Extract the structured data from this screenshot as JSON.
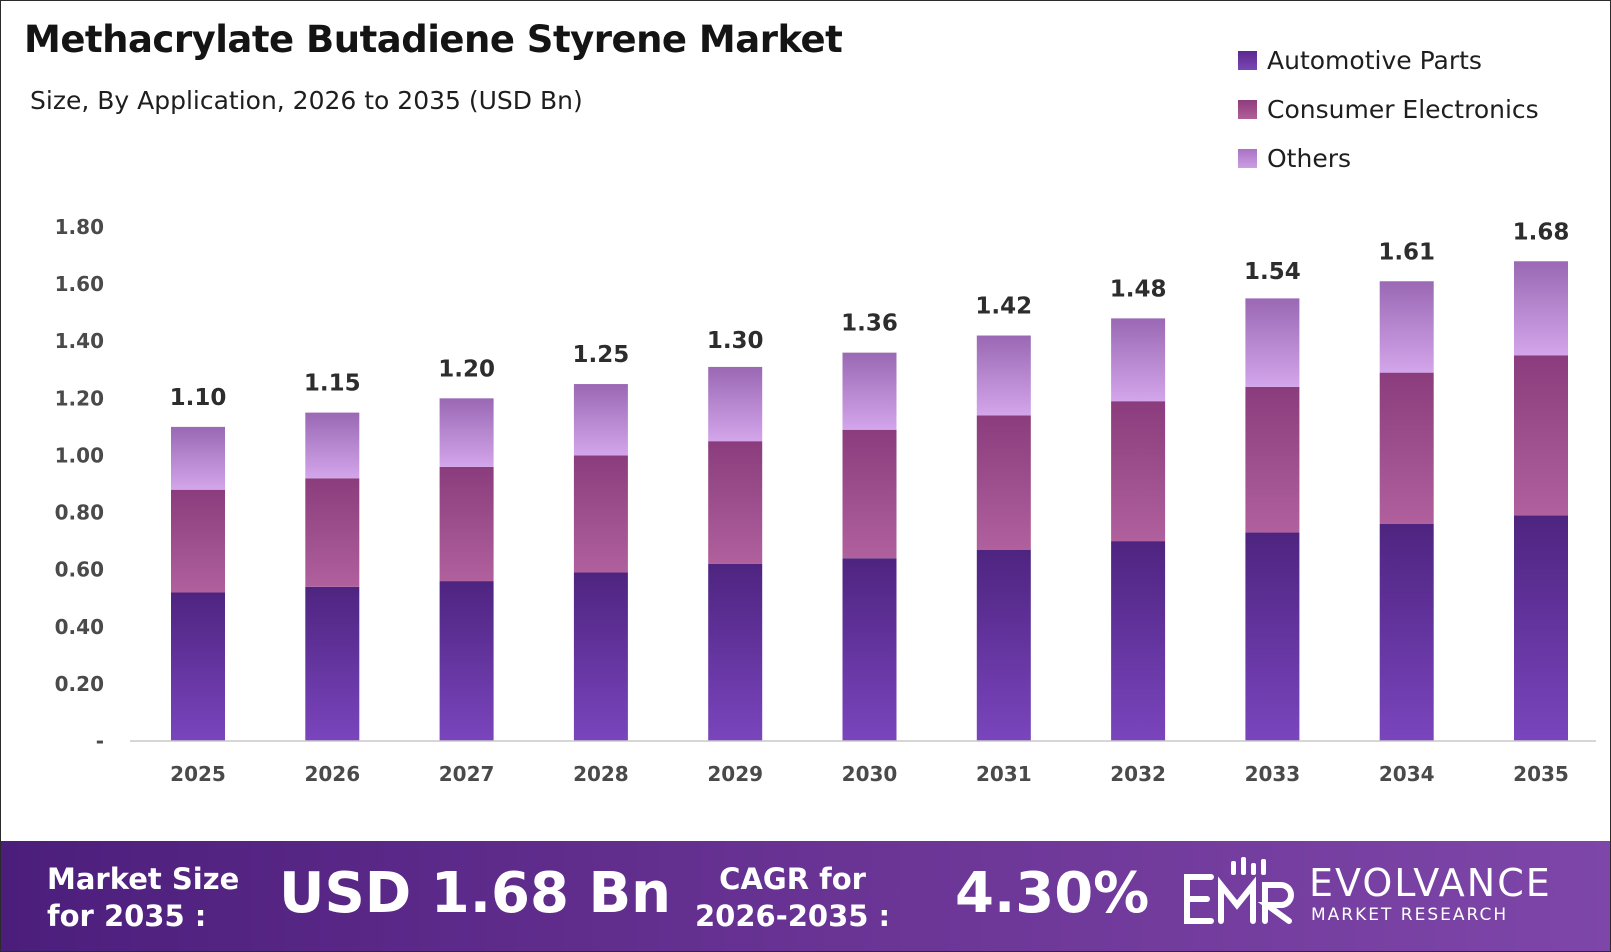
{
  "title": "Methacrylate Butadiene Styrene Market",
  "subtitle": "Size, By Application, 2026 to 2035 (USD Bn)",
  "colors": {
    "automotive": "#6a3aa0",
    "consumer": "#a9508f",
    "others": "#c18fd8",
    "footer": "#5b2a88"
  },
  "legend": [
    {
      "label": "Automotive Parts",
      "color": "#6a3aa0"
    },
    {
      "label": "Consumer Electronics",
      "color": "#a9508f"
    },
    {
      "label": "Others",
      "color": "#c18fd8"
    }
  ],
  "chart_data": {
    "type": "bar",
    "stacked": true,
    "title": "Methacrylate Butadiene Styrene Market",
    "subtitle": "Size, By Application, 2026 to 2035 (USD Bn)",
    "categories": [
      "2025",
      "2026",
      "2027",
      "2028",
      "2029",
      "2030",
      "2031",
      "2032",
      "2033",
      "2034",
      "2035"
    ],
    "series": [
      {
        "name": "Automotive Parts",
        "values": [
          0.52,
          0.54,
          0.56,
          0.59,
          0.62,
          0.64,
          0.67,
          0.7,
          0.73,
          0.76,
          0.79
        ]
      },
      {
        "name": "Consumer Electronics",
        "values": [
          0.36,
          0.38,
          0.4,
          0.41,
          0.43,
          0.45,
          0.47,
          0.49,
          0.51,
          0.53,
          0.56
        ]
      },
      {
        "name": "Others",
        "values": [
          0.22,
          0.23,
          0.24,
          0.25,
          0.26,
          0.27,
          0.28,
          0.29,
          0.31,
          0.32,
          0.33
        ]
      }
    ],
    "totals": [
      "1.10",
      "1.15",
      "1.20",
      "1.25",
      "1.30",
      "1.36",
      "1.42",
      "1.48",
      "1.54",
      "1.61",
      "1.68"
    ],
    "yticks": [
      "-",
      "0.20",
      "0.40",
      "0.60",
      "0.80",
      "1.00",
      "1.20",
      "1.40",
      "1.60",
      "1.80"
    ],
    "ylim": [
      0,
      1.8
    ],
    "grid": false,
    "legend_position": "top-right"
  },
  "footer": {
    "market_size_label_1": "Market Size",
    "market_size_label_2": "for 2035 :",
    "market_size_value": "USD 1.68 Bn",
    "cagr_label_1": "CAGR for",
    "cagr_label_2": "2026-2035 :",
    "cagr_value": "4.30%",
    "brand_name": "EVOLVANCE",
    "brand_sub": "MARKET RESEARCH",
    "logo_icon": "emr-logo-icon"
  }
}
